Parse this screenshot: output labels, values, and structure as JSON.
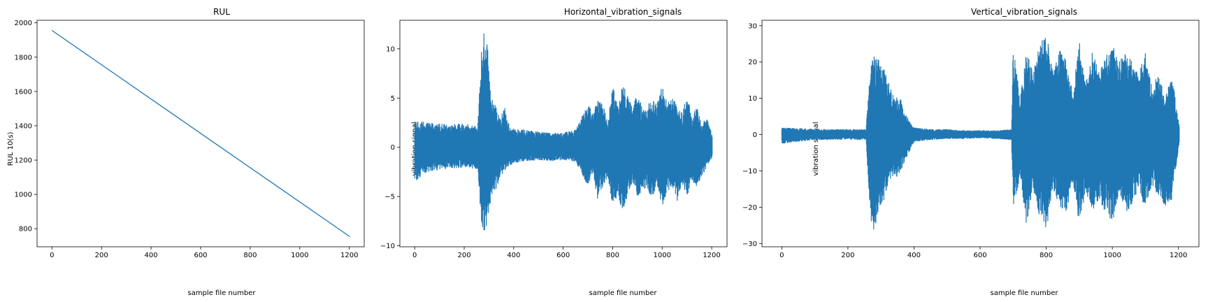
{
  "chart_data": [
    {
      "type": "line",
      "title": "RUL",
      "xlabel": "sample file number",
      "ylabel": "RUL 10(s)",
      "xlim": [
        -60,
        1260
      ],
      "ylim": [
        695,
        2015
      ],
      "xticks": [
        0,
        200,
        400,
        600,
        800,
        1000,
        1200
      ],
      "yticks": [
        800,
        1000,
        1200,
        1400,
        1600,
        1800,
        2000
      ],
      "ytick_labels": [
        "800",
        "1000",
        "1200",
        "1400",
        "1600",
        "1800",
        "2000"
      ],
      "grid": false,
      "series": [
        {
          "color": "#1f77b4",
          "x": [
            0,
            1202
          ],
          "y": [
            1956,
            754
          ]
        }
      ]
    },
    {
      "type": "line",
      "title": "Horizontal_vibration_signals",
      "xlabel": "sample file number",
      "ylabel": "vibration signal",
      "xlim": [
        -60,
        1262
      ],
      "ylim": [
        -10.1,
        12.9
      ],
      "xticks": [
        0,
        200,
        400,
        600,
        800,
        1000,
        1200
      ],
      "yticks": [
        -10,
        -5,
        0,
        5,
        10
      ],
      "ytick_labels": [
        "−10",
        "−5",
        "0",
        "5",
        "10"
      ],
      "grid": false,
      "series": [
        {
          "color": "#1f77b4",
          "x_range": [
            0,
            1203
          ],
          "envelope_x": [
            0,
            50,
            100,
            150,
            200,
            255,
            262,
            270,
            275,
            280,
            285,
            290,
            295,
            300,
            305,
            310,
            320,
            330,
            340,
            350,
            360,
            370,
            380,
            390,
            400,
            450,
            500,
            550,
            600,
            650,
            700,
            720,
            740,
            760,
            780,
            800,
            820,
            840,
            860,
            880,
            900,
            920,
            940,
            960,
            980,
            1000,
            1020,
            1040,
            1060,
            1080,
            1100,
            1120,
            1140,
            1160,
            1180,
            1203
          ],
          "envelope_max": [
            2.8,
            2.6,
            2.4,
            2.4,
            2.4,
            2.3,
            6.0,
            10.5,
            11.5,
            12.0,
            11.8,
            11.6,
            10.0,
            9.0,
            6.5,
            5.0,
            4.5,
            4.2,
            3.2,
            2.8,
            5.0,
            3.0,
            2.5,
            2.0,
            2.0,
            1.8,
            1.6,
            1.5,
            1.5,
            1.8,
            4.5,
            3.5,
            5.0,
            4.5,
            2.5,
            6.8,
            4.2,
            6.5,
            5.5,
            4.0,
            6.0,
            4.0,
            4.2,
            5.0,
            4.5,
            6.5,
            4.5,
            5.0,
            4.5,
            3.5,
            5.5,
            3.0,
            4.5,
            2.5,
            3.0,
            1.2
          ],
          "envelope_min": [
            -3.5,
            -2.5,
            -2.3,
            -2.2,
            -2.1,
            -2.2,
            -5.0,
            -8.0,
            -9.0,
            -8.5,
            -8.8,
            -8.0,
            -7.5,
            -7.0,
            -6.0,
            -5.0,
            -4.5,
            -4.2,
            -3.5,
            -3.0,
            -2.6,
            -2.2,
            -2.0,
            -1.8,
            -1.6,
            -1.4,
            -1.3,
            -1.4,
            -1.3,
            -1.5,
            -4.0,
            -2.5,
            -5.5,
            -4.0,
            -3.0,
            -6.0,
            -5.0,
            -6.5,
            -5.0,
            -3.5,
            -5.5,
            -4.0,
            -4.5,
            -5.0,
            -4.0,
            -6.0,
            -4.5,
            -4.0,
            -5.5,
            -4.0,
            -5.0,
            -3.5,
            -4.0,
            -3.0,
            -2.0,
            -1.0
          ]
        }
      ]
    },
    {
      "type": "line",
      "title": "Vertical_vibration_signals",
      "xlabel": "sample file number",
      "ylabel": "vibration signal",
      "xlim": [
        -60,
        1262
      ],
      "ylim": [
        -30.9,
        31.5
      ],
      "xticks": [
        0,
        200,
        400,
        600,
        800,
        1000,
        1200
      ],
      "yticks": [
        -30,
        -20,
        -10,
        0,
        10,
        20,
        30
      ],
      "ytick_labels": [
        "−30",
        "−20",
        "−10",
        "0",
        "10",
        "20",
        "30"
      ],
      "grid": false,
      "series": [
        {
          "color": "#1f77b4",
          "x_range": [
            0,
            1203
          ],
          "envelope_x": [
            0,
            50,
            100,
            150,
            200,
            255,
            262,
            270,
            280,
            290,
            300,
            310,
            320,
            330,
            340,
            350,
            360,
            370,
            380,
            390,
            400,
            450,
            500,
            550,
            600,
            650,
            695,
            700,
            720,
            740,
            760,
            780,
            800,
            820,
            840,
            860,
            880,
            900,
            920,
            940,
            960,
            980,
            1000,
            1020,
            1040,
            1060,
            1080,
            1100,
            1120,
            1140,
            1160,
            1180,
            1203
          ],
          "envelope_max": [
            2.0,
            1.8,
            1.6,
            1.5,
            1.5,
            1.5,
            12.0,
            20.0,
            22.0,
            21.0,
            20.0,
            18.0,
            15.0,
            13.0,
            10.0,
            11.0,
            10.0,
            6.0,
            5.0,
            3.0,
            2.0,
            1.5,
            1.5,
            1.2,
            1.2,
            1.2,
            1.5,
            26.0,
            10.0,
            23.0,
            18.0,
            25.0,
            28.0,
            18.0,
            24.0,
            21.0,
            12.0,
            26.0,
            14.0,
            23.0,
            17.0,
            22.0,
            25.0,
            20.0,
            24.0,
            20.0,
            17.0,
            23.0,
            13.0,
            17.0,
            10.0,
            17.0,
            2.0
          ],
          "envelope_min": [
            -2.5,
            -2.0,
            -1.5,
            -1.4,
            -1.4,
            -1.5,
            -14.0,
            -25.0,
            -27.0,
            -23.0,
            -20.0,
            -18.0,
            -14.0,
            -12.0,
            -11.0,
            -12.0,
            -10.0,
            -8.0,
            -6.0,
            -4.0,
            -2.0,
            -1.5,
            -1.2,
            -1.2,
            -1.0,
            -1.2,
            -1.5,
            -22.0,
            -12.0,
            -25.0,
            -15.0,
            -23.0,
            -27.0,
            -15.0,
            -21.0,
            -22.0,
            -13.0,
            -25.0,
            -16.0,
            -21.0,
            -18.0,
            -22.0,
            -25.0,
            -16.0,
            -22.0,
            -19.0,
            -15.0,
            -21.0,
            -14.0,
            -17.0,
            -20.0,
            -18.0,
            -2.0
          ]
        }
      ]
    }
  ]
}
